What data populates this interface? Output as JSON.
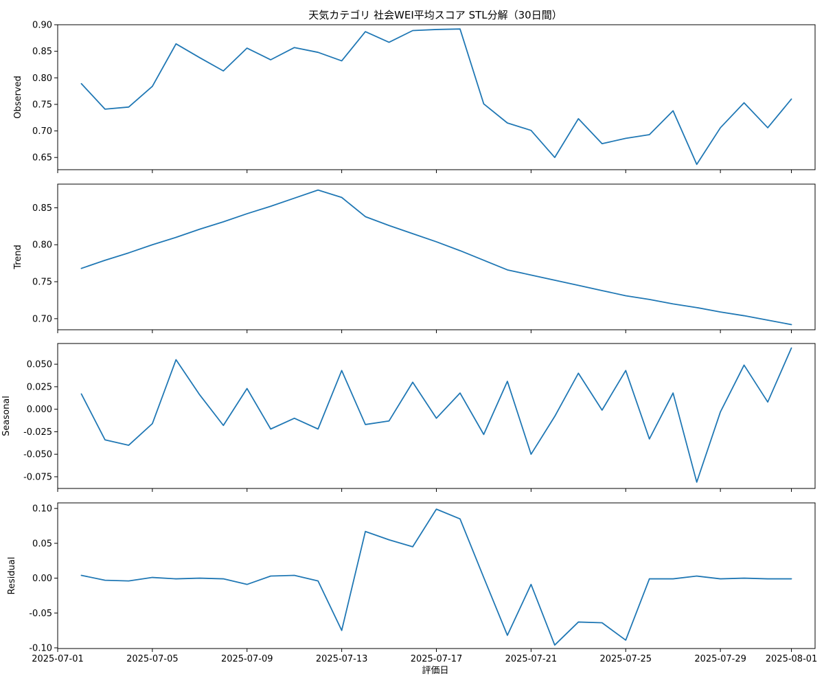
{
  "chart_data": {
    "type": "line",
    "title": "天気カテゴリ 社会WEI平均スコア STL分解（30日間）",
    "xlabel": "評価日",
    "line_color": "#1f77b4",
    "x": [
      "2025-07-02",
      "2025-07-03",
      "2025-07-04",
      "2025-07-05",
      "2025-07-06",
      "2025-07-07",
      "2025-07-08",
      "2025-07-09",
      "2025-07-10",
      "2025-07-11",
      "2025-07-12",
      "2025-07-13",
      "2025-07-14",
      "2025-07-15",
      "2025-07-16",
      "2025-07-17",
      "2025-07-18",
      "2025-07-19",
      "2025-07-20",
      "2025-07-21",
      "2025-07-22",
      "2025-07-23",
      "2025-07-24",
      "2025-07-25",
      "2025-07-26",
      "2025-07-27",
      "2025-07-28",
      "2025-07-29",
      "2025-07-30",
      "2025-07-31",
      "2025-08-01"
    ],
    "x_ticks": [
      "2025-07-01",
      "2025-07-05",
      "2025-07-09",
      "2025-07-13",
      "2025-07-17",
      "2025-07-21",
      "2025-07-25",
      "2025-07-29",
      "2025-08-01"
    ],
    "x_range": [
      "2025-07-01",
      "2025-08-02"
    ],
    "panels": [
      {
        "name": "Observed",
        "ylabel": "Observed",
        "ylim": [
          0.627,
          0.9
        ],
        "yticks": [
          "0.65",
          "0.70",
          "0.75",
          "0.80",
          "0.85",
          "0.90"
        ],
        "values": [
          0.789,
          0.741,
          0.745,
          0.784,
          0.864,
          0.838,
          0.813,
          0.856,
          0.834,
          0.857,
          0.848,
          0.832,
          0.887,
          0.867,
          0.889,
          0.891,
          0.892,
          0.751,
          0.715,
          0.701,
          0.65,
          0.723,
          0.676,
          0.686,
          0.693,
          0.738,
          0.637,
          0.706,
          0.753,
          0.706,
          0.76
        ]
      },
      {
        "name": "Trend",
        "ylabel": "Trend",
        "ylim": [
          0.685,
          0.882
        ],
        "yticks": [
          "0.70",
          "0.75",
          "0.80",
          "0.85"
        ],
        "values": [
          0.768,
          0.779,
          0.789,
          0.8,
          0.81,
          0.821,
          0.831,
          0.842,
          0.852,
          0.863,
          0.874,
          0.864,
          0.838,
          0.826,
          0.815,
          0.804,
          0.792,
          0.779,
          0.766,
          0.759,
          0.752,
          0.745,
          0.738,
          0.731,
          0.726,
          0.72,
          0.715,
          0.709,
          0.704,
          0.698,
          0.692
        ]
      },
      {
        "name": "Seasonal",
        "ylabel": "Seasonal",
        "ylim": [
          -0.088,
          0.073
        ],
        "yticks": [
          "0.050",
          "0.025",
          "0.000",
          "-0.025",
          "-0.050",
          "-0.075"
        ],
        "values": [
          0.017,
          -0.034,
          -0.04,
          -0.016,
          0.055,
          0.016,
          -0.018,
          0.023,
          -0.022,
          -0.01,
          -0.022,
          0.043,
          -0.017,
          -0.013,
          0.03,
          -0.01,
          0.018,
          -0.028,
          0.031,
          -0.05,
          -0.008,
          0.04,
          -0.001,
          0.043,
          -0.033,
          0.018,
          -0.081,
          -0.003,
          0.049,
          0.008,
          0.068
        ]
      },
      {
        "name": "Residual",
        "ylabel": "Residual",
        "ylim": [
          -0.101,
          0.108
        ],
        "yticks": [
          "0.10",
          "0.05",
          "0.00",
          "-0.05",
          "-0.10"
        ],
        "values": [
          0.004,
          -0.003,
          -0.004,
          0.001,
          -0.001,
          0.0,
          -0.001,
          -0.009,
          0.003,
          0.004,
          -0.004,
          -0.075,
          0.067,
          0.055,
          0.045,
          0.099,
          0.085,
          0.001,
          -0.082,
          -0.009,
          -0.096,
          -0.063,
          -0.064,
          -0.089,
          -0.001,
          -0.001,
          0.003,
          -0.001,
          0.0,
          -0.001,
          -0.001
        ]
      }
    ],
    "grid": false,
    "legend": "none"
  }
}
